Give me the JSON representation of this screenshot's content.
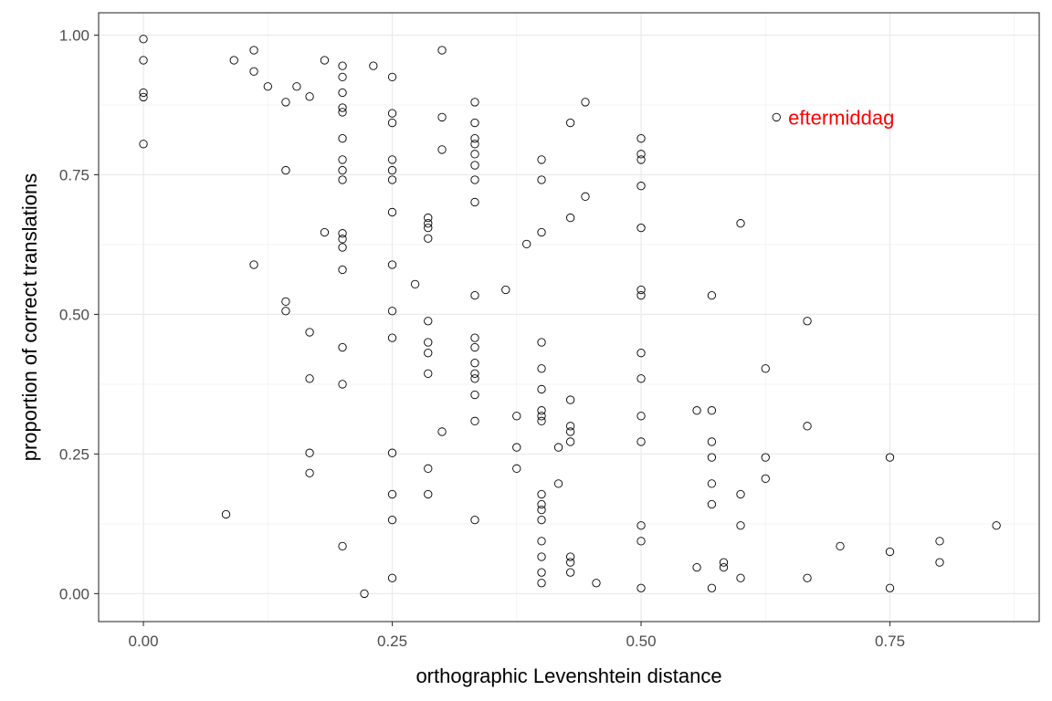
{
  "chart_data": {
    "type": "scatter",
    "title": "",
    "xlabel": "orthographic Levenshtein distance",
    "ylabel": "proportion of correct translations",
    "xlim": [
      -0.045,
      0.9
    ],
    "ylim": [
      -0.05,
      1.04
    ],
    "xticks": [
      0.0,
      0.25,
      0.5,
      0.75
    ],
    "xtick_labels": [
      "0.00",
      "0.25",
      "0.50",
      "0.75"
    ],
    "yticks": [
      0.0,
      0.25,
      0.5,
      0.75,
      1.0
    ],
    "ytick_labels": [
      "0.00",
      "0.25",
      "0.50",
      "0.75",
      "1.00"
    ],
    "grid": true,
    "marker_color": "#000000",
    "annotations": [
      {
        "text": "eftermiddag",
        "x": 0.635,
        "y": 0.853,
        "color": "#ff0000"
      }
    ],
    "points": [
      [
        0.0,
        0.993
      ],
      [
        0.0,
        0.955
      ],
      [
        0.0,
        0.897
      ],
      [
        0.0,
        0.889
      ],
      [
        0.0,
        0.805
      ],
      [
        0.083,
        0.142
      ],
      [
        0.091,
        0.955
      ],
      [
        0.111,
        0.973
      ],
      [
        0.111,
        0.935
      ],
      [
        0.111,
        0.589
      ],
      [
        0.125,
        0.908
      ],
      [
        0.143,
        0.88
      ],
      [
        0.143,
        0.758
      ],
      [
        0.143,
        0.523
      ],
      [
        0.143,
        0.506
      ],
      [
        0.154,
        0.908
      ],
      [
        0.167,
        0.89
      ],
      [
        0.167,
        0.468
      ],
      [
        0.167,
        0.385
      ],
      [
        0.167,
        0.252
      ],
      [
        0.167,
        0.216
      ],
      [
        0.182,
        0.955
      ],
      [
        0.182,
        0.647
      ],
      [
        0.2,
        0.945
      ],
      [
        0.2,
        0.925
      ],
      [
        0.2,
        0.897
      ],
      [
        0.2,
        0.87
      ],
      [
        0.2,
        0.862
      ],
      [
        0.2,
        0.815
      ],
      [
        0.2,
        0.777
      ],
      [
        0.2,
        0.758
      ],
      [
        0.2,
        0.741
      ],
      [
        0.2,
        0.645
      ],
      [
        0.2,
        0.635
      ],
      [
        0.2,
        0.62
      ],
      [
        0.2,
        0.58
      ],
      [
        0.2,
        0.441
      ],
      [
        0.2,
        0.375
      ],
      [
        0.2,
        0.085
      ],
      [
        0.222,
        0.0
      ],
      [
        0.231,
        0.945
      ],
      [
        0.25,
        0.925
      ],
      [
        0.25,
        0.86
      ],
      [
        0.25,
        0.843
      ],
      [
        0.25,
        0.777
      ],
      [
        0.25,
        0.758
      ],
      [
        0.25,
        0.741
      ],
      [
        0.25,
        0.683
      ],
      [
        0.25,
        0.589
      ],
      [
        0.25,
        0.506
      ],
      [
        0.25,
        0.458
      ],
      [
        0.25,
        0.252
      ],
      [
        0.25,
        0.178
      ],
      [
        0.25,
        0.132
      ],
      [
        0.25,
        0.028
      ],
      [
        0.273,
        0.554
      ],
      [
        0.286,
        0.673
      ],
      [
        0.286,
        0.663
      ],
      [
        0.286,
        0.655
      ],
      [
        0.286,
        0.636
      ],
      [
        0.286,
        0.488
      ],
      [
        0.286,
        0.45
      ],
      [
        0.286,
        0.431
      ],
      [
        0.286,
        0.394
      ],
      [
        0.286,
        0.224
      ],
      [
        0.286,
        0.178
      ],
      [
        0.3,
        0.973
      ],
      [
        0.3,
        0.853
      ],
      [
        0.3,
        0.795
      ],
      [
        0.3,
        0.29
      ],
      [
        0.333,
        0.88
      ],
      [
        0.333,
        0.843
      ],
      [
        0.333,
        0.815
      ],
      [
        0.333,
        0.805
      ],
      [
        0.333,
        0.787
      ],
      [
        0.333,
        0.767
      ],
      [
        0.333,
        0.741
      ],
      [
        0.333,
        0.701
      ],
      [
        0.333,
        0.534
      ],
      [
        0.333,
        0.458
      ],
      [
        0.333,
        0.441
      ],
      [
        0.333,
        0.413
      ],
      [
        0.333,
        0.394
      ],
      [
        0.333,
        0.385
      ],
      [
        0.333,
        0.356
      ],
      [
        0.333,
        0.309
      ],
      [
        0.333,
        0.132
      ],
      [
        0.364,
        0.544
      ],
      [
        0.375,
        0.318
      ],
      [
        0.375,
        0.262
      ],
      [
        0.375,
        0.224
      ],
      [
        0.385,
        0.626
      ],
      [
        0.4,
        0.777
      ],
      [
        0.4,
        0.741
      ],
      [
        0.4,
        0.647
      ],
      [
        0.4,
        0.45
      ],
      [
        0.4,
        0.403
      ],
      [
        0.4,
        0.366
      ],
      [
        0.4,
        0.328
      ],
      [
        0.4,
        0.318
      ],
      [
        0.4,
        0.309
      ],
      [
        0.4,
        0.178
      ],
      [
        0.4,
        0.16
      ],
      [
        0.4,
        0.15
      ],
      [
        0.4,
        0.132
      ],
      [
        0.4,
        0.094
      ],
      [
        0.4,
        0.066
      ],
      [
        0.4,
        0.038
      ],
      [
        0.4,
        0.019
      ],
      [
        0.417,
        0.262
      ],
      [
        0.417,
        0.197
      ],
      [
        0.429,
        0.843
      ],
      [
        0.429,
        0.673
      ],
      [
        0.429,
        0.347
      ],
      [
        0.429,
        0.3
      ],
      [
        0.429,
        0.29
      ],
      [
        0.429,
        0.272
      ],
      [
        0.429,
        0.066
      ],
      [
        0.429,
        0.056
      ],
      [
        0.429,
        0.038
      ],
      [
        0.444,
        0.88
      ],
      [
        0.444,
        0.711
      ],
      [
        0.455,
        0.019
      ],
      [
        0.5,
        0.815
      ],
      [
        0.5,
        0.787
      ],
      [
        0.5,
        0.777
      ],
      [
        0.5,
        0.73
      ],
      [
        0.5,
        0.655
      ],
      [
        0.5,
        0.544
      ],
      [
        0.5,
        0.534
      ],
      [
        0.5,
        0.431
      ],
      [
        0.5,
        0.385
      ],
      [
        0.5,
        0.318
      ],
      [
        0.5,
        0.272
      ],
      [
        0.5,
        0.122
      ],
      [
        0.5,
        0.094
      ],
      [
        0.5,
        0.01
      ],
      [
        0.556,
        0.328
      ],
      [
        0.556,
        0.047
      ],
      [
        0.571,
        0.534
      ],
      [
        0.571,
        0.328
      ],
      [
        0.571,
        0.272
      ],
      [
        0.571,
        0.244
      ],
      [
        0.571,
        0.197
      ],
      [
        0.571,
        0.16
      ],
      [
        0.571,
        0.01
      ],
      [
        0.583,
        0.056
      ],
      [
        0.583,
        0.047
      ],
      [
        0.6,
        0.663
      ],
      [
        0.6,
        0.178
      ],
      [
        0.6,
        0.122
      ],
      [
        0.6,
        0.028
      ],
      [
        0.625,
        0.403
      ],
      [
        0.625,
        0.244
      ],
      [
        0.625,
        0.206
      ],
      [
        0.636,
        0.853
      ],
      [
        0.667,
        0.488
      ],
      [
        0.667,
        0.3
      ],
      [
        0.667,
        0.028
      ],
      [
        0.7,
        0.085
      ],
      [
        0.75,
        0.244
      ],
      [
        0.75,
        0.075
      ],
      [
        0.75,
        0.01
      ],
      [
        0.8,
        0.094
      ],
      [
        0.8,
        0.056
      ],
      [
        0.857,
        0.122
      ]
    ]
  }
}
